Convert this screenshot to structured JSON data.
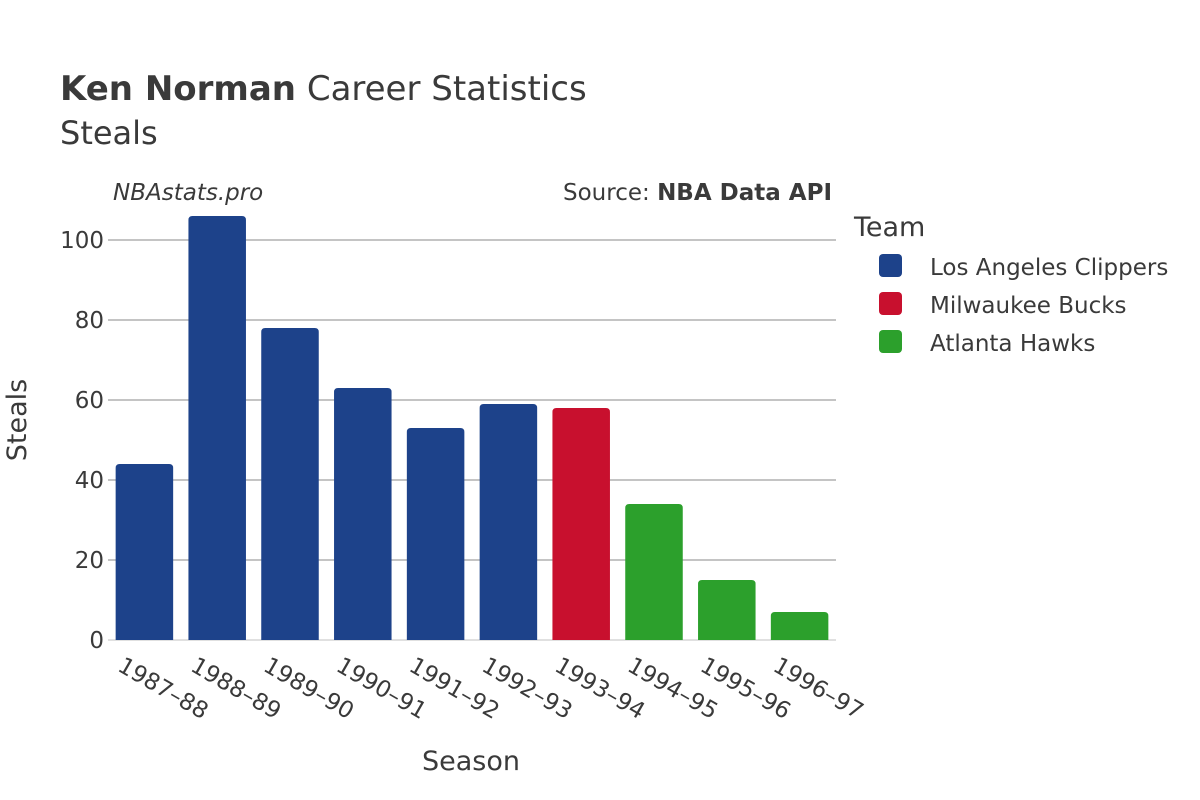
{
  "title": {
    "bold": "Ken Norman",
    "rest": " Career Statistics",
    "subtitle": "Steals"
  },
  "watermark": "NBAstats.pro",
  "source": {
    "label": "Source: ",
    "value": "NBA Data API"
  },
  "chart_data": {
    "type": "bar",
    "xlabel": "Season",
    "ylabel": "Steals",
    "ylim": [
      0,
      110
    ],
    "yticks": [
      0,
      20,
      40,
      60,
      80,
      100
    ],
    "grid": true,
    "legend_title": "Team",
    "legend_position": "right",
    "teams": [
      {
        "name": "Los Angeles Clippers",
        "color": "#1d428a"
      },
      {
        "name": "Milwaukee Bucks",
        "color": "#c8102e"
      },
      {
        "name": "Atlanta Hawks",
        "color": "#2ca02c"
      }
    ],
    "bars": [
      {
        "season": "1987–88",
        "value": 44,
        "team": "Los Angeles Clippers"
      },
      {
        "season": "1988–89",
        "value": 106,
        "team": "Los Angeles Clippers"
      },
      {
        "season": "1989–90",
        "value": 78,
        "team": "Los Angeles Clippers"
      },
      {
        "season": "1990–91",
        "value": 63,
        "team": "Los Angeles Clippers"
      },
      {
        "season": "1991–92",
        "value": 53,
        "team": "Los Angeles Clippers"
      },
      {
        "season": "1992–93",
        "value": 59,
        "team": "Los Angeles Clippers"
      },
      {
        "season": "1993–94",
        "value": 58,
        "team": "Milwaukee Bucks"
      },
      {
        "season": "1994–95",
        "value": 34,
        "team": "Atlanta Hawks"
      },
      {
        "season": "1995–96",
        "value": 15,
        "team": "Atlanta Hawks"
      },
      {
        "season": "1996–97",
        "value": 7,
        "team": "Atlanta Hawks"
      }
    ]
  }
}
